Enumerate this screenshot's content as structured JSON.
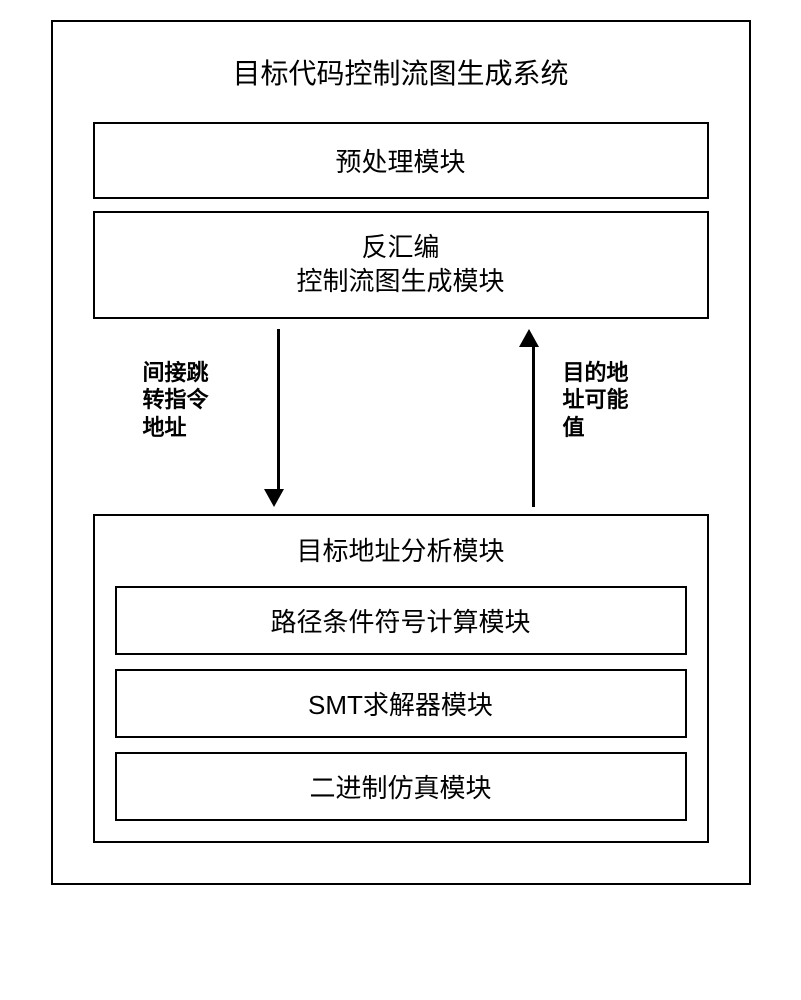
{
  "type": "flowchart",
  "system_title": "目标代码控制流图生成系统",
  "modules": {
    "preprocess": {
      "label": "预处理模块"
    },
    "disassembly": {
      "line1": "反汇编",
      "line2": "控制流图生成模块"
    },
    "analysis": {
      "title": "目标地址分析模块",
      "inner": [
        {
          "label": "路径条件符号计算模块"
        },
        {
          "label": "SMT求解器模块"
        },
        {
          "label": "二进制仿真模块"
        }
      ]
    }
  },
  "arrows": {
    "left_label": "间接跳\n转指令\n地址",
    "right_label": "目的地\n址可能\n值"
  },
  "style": {
    "border_color": "#000000",
    "background_color": "#ffffff",
    "title_fontsize": 28,
    "module_fontsize": 26,
    "label_fontsize": 22,
    "label_fontweight": "bold",
    "arrow_shaft_width": 3,
    "arrow_shaft_height": 160,
    "arrow_head_size": 18,
    "outer_box_width": 700
  }
}
